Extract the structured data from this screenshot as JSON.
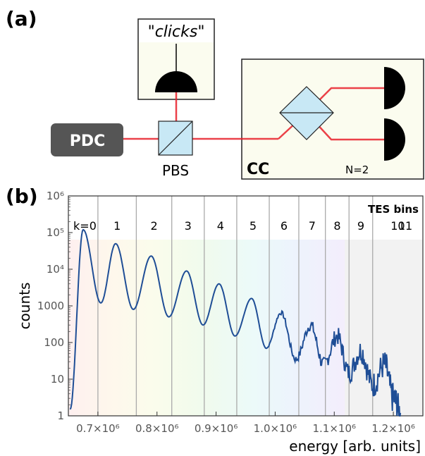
{
  "panel_a": {
    "label": "(a)",
    "source_label": "PDC",
    "beamsplitter_label": "PBS",
    "detector_box": {
      "quote_open": "\"",
      "label_italic": "clicks",
      "quote_close": "\""
    },
    "cc_box": {
      "label": "CC",
      "n_label": "N=2"
    }
  },
  "panel_b": {
    "label": "(b)",
    "tes_bins_label": "TES bins",
    "bin_labels": [
      "k=0",
      "1",
      "2",
      "3",
      "4",
      "5",
      "6",
      "7",
      "8",
      "9",
      "10",
      "11"
    ],
    "colors": {
      "curve": "#1f4e96",
      "beam": "#e8202a",
      "bin_lines": "#aaaaaa"
    }
  },
  "chart_data": {
    "type": "line",
    "title": "",
    "xlabel": "energy [arb. units]",
    "ylabel": "counts",
    "y_scale": "log",
    "xlim": [
      650000,
      1250000
    ],
    "ylim": [
      1,
      1000000
    ],
    "x_ticks": [
      {
        "value": 700000,
        "label": "0.7×10⁶"
      },
      {
        "value": 800000,
        "label": "0.8×10⁶"
      },
      {
        "value": 900000,
        "label": "0.9×10⁶"
      },
      {
        "value": 1000000,
        "label": "1.0×10⁶"
      },
      {
        "value": 1100000,
        "label": "1.1×10⁶"
      },
      {
        "value": 1200000,
        "label": "1.2×10⁶"
      }
    ],
    "y_ticks": [
      {
        "value": 1,
        "label": "1"
      },
      {
        "value": 10,
        "label": "10"
      },
      {
        "value": 100,
        "label": "100"
      },
      {
        "value": 1000,
        "label": "1000"
      },
      {
        "value": 10000,
        "label": "10⁴"
      },
      {
        "value": 100000,
        "label": "10⁵"
      },
      {
        "value": 1000000,
        "label": "10⁶"
      }
    ],
    "bin_boundaries": [
      700000,
      765000,
      825000,
      880000,
      935000,
      990000,
      1040000,
      1085000,
      1125000,
      1165000
    ],
    "peaks": [
      {
        "k": 0,
        "x": 675000,
        "y": 120000
      },
      {
        "k": 1,
        "x": 730000,
        "y": 50000
      },
      {
        "k": 2,
        "x": 790000,
        "y": 23000
      },
      {
        "k": 3,
        "x": 850000,
        "y": 9000
      },
      {
        "k": 4,
        "x": 905000,
        "y": 4000
      },
      {
        "k": 5,
        "x": 960000,
        "y": 1600
      },
      {
        "k": 6,
        "x": 1010000,
        "y": 650
      },
      {
        "k": 7,
        "x": 1060000,
        "y": 300
      },
      {
        "k": 8,
        "x": 1105000,
        "y": 150
      },
      {
        "k": 9,
        "x": 1145000,
        "y": 60
      },
      {
        "k": 10,
        "x": 1185000,
        "y": 25
      }
    ],
    "valleys": [
      {
        "x": 705000,
        "y": 1200
      },
      {
        "x": 760000,
        "y": 800
      },
      {
        "x": 820000,
        "y": 500
      },
      {
        "x": 878000,
        "y": 300
      },
      {
        "x": 932000,
        "y": 150
      },
      {
        "x": 985000,
        "y": 70
      },
      {
        "x": 1035000,
        "y": 35
      },
      {
        "x": 1082000,
        "y": 25
      },
      {
        "x": 1125000,
        "y": 15
      },
      {
        "x": 1165000,
        "y": 7
      }
    ]
  }
}
